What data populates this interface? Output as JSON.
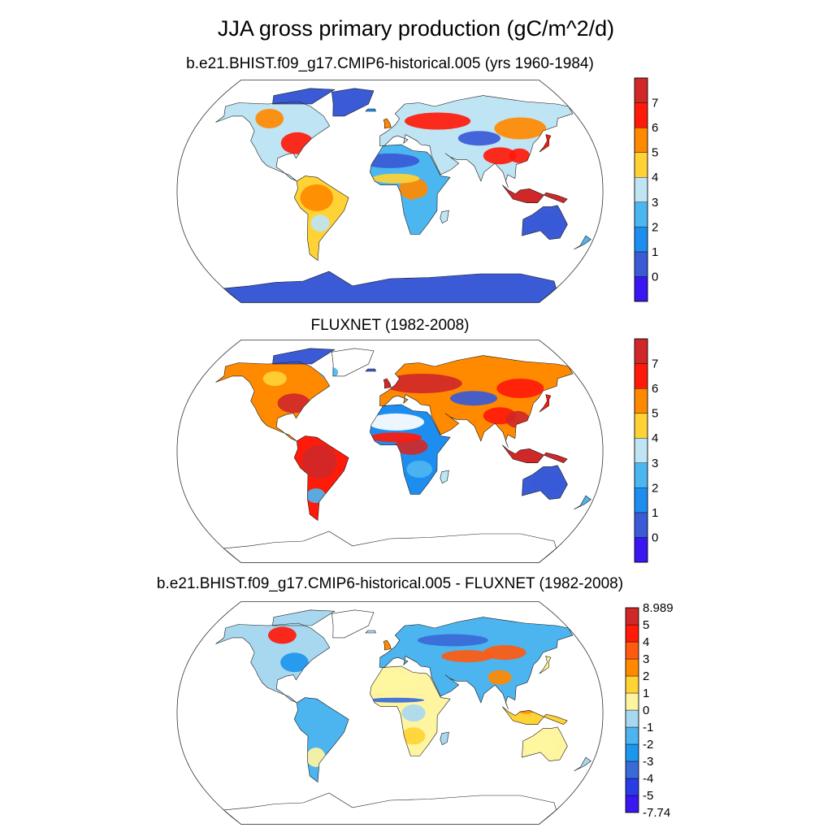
{
  "figure": {
    "title": "JJA gross primary production (gC/m^2/d)"
  },
  "panels": [
    {
      "id": "model",
      "title": "b.e21.BHIST.f09_g17.CMIP6-historical.005 (yrs 1960-1984)",
      "colorbar": {
        "colors": [
          "#3a16f0",
          "#3a5ad6",
          "#1d8ef0",
          "#4cb6f0",
          "#bfe4f4",
          "#ffd235",
          "#ff8a00",
          "#ff1a0a",
          "#d02828"
        ],
        "labels": [
          "0",
          "1",
          "2",
          "3",
          "4",
          "5",
          "6",
          "7"
        ]
      }
    },
    {
      "id": "fluxnet",
      "title": "FLUXNET (1982-2008)",
      "colorbar": {
        "colors": [
          "#3a16f0",
          "#3a5ad6",
          "#1d8ef0",
          "#4cb6f0",
          "#bfe4f4",
          "#ffd235",
          "#ff8a00",
          "#ff1a0a",
          "#d02828"
        ],
        "labels": [
          "0",
          "1",
          "2",
          "3",
          "4",
          "5",
          "6",
          "7"
        ]
      }
    },
    {
      "id": "difference",
      "title": "b.e21.BHIST.f09_g17.CMIP6-historical.005 - FLUXNET (1982-2008)",
      "colorbar": {
        "colors": [
          "#3a16f0",
          "#2a3ce6",
          "#3a6ad8",
          "#1d96ee",
          "#4cb4ee",
          "#a8d8f0",
          "#fff5a0",
          "#ffd235",
          "#ff8a00",
          "#ff5a10",
          "#ff1a0a",
          "#d02828"
        ],
        "labels": [
          "-7.74",
          "-5",
          "-4",
          "-3",
          "-2",
          "-1",
          "0",
          "1",
          "2",
          "3",
          "4",
          "5",
          "8.989"
        ]
      }
    }
  ]
}
